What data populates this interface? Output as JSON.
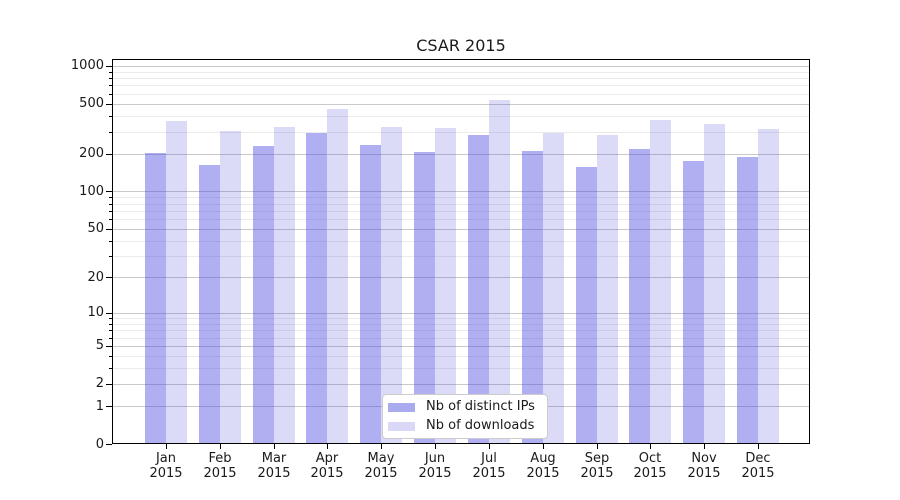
{
  "page": {
    "background": "#ffffff"
  },
  "chart_data": {
    "type": "bar",
    "title": "CSAR 2015",
    "categories": [
      "Jan 2015",
      "Feb 2015",
      "Mar 2015",
      "Apr 2015",
      "May 2015",
      "Jun 2015",
      "Jul 2015",
      "Aug 2015",
      "Sep 2015",
      "Oct 2015",
      "Nov 2015",
      "Dec 2015"
    ],
    "series": [
      {
        "name": "Nb of distinct IPs",
        "color": "rgba(73,73,222,0.44)",
        "legend_swatch": "#aaaaee",
        "values": [
          202,
          162,
          232,
          293,
          235,
          207,
          282,
          211,
          156,
          218,
          175,
          190
        ]
      },
      {
        "name": "Nb of downloads",
        "color": "rgba(73,73,222,0.20)",
        "legend_swatch": "#d9d9f7",
        "values": [
          365,
          306,
          330,
          452,
          325,
          321,
          533,
          291,
          281,
          372,
          343,
          313
        ]
      }
    ],
    "xlabel": "",
    "ylabel": "",
    "yscale": "log1p",
    "ylim": [
      0,
      1130
    ],
    "y_ticks": [
      0,
      1,
      2,
      5,
      10,
      20,
      50,
      100,
      200,
      500,
      1000
    ],
    "y_minor_gridlines": [
      3,
      4,
      6,
      7,
      8,
      9,
      30,
      40,
      60,
      70,
      80,
      90,
      300,
      400,
      600,
      700,
      800,
      900
    ],
    "grid": "on",
    "legend_position": "lower center",
    "colors": {
      "grid_major": "#c9c9c9",
      "grid_minor": "#ebebeb",
      "axis": "#000000",
      "text": "#1a1a1a"
    }
  }
}
